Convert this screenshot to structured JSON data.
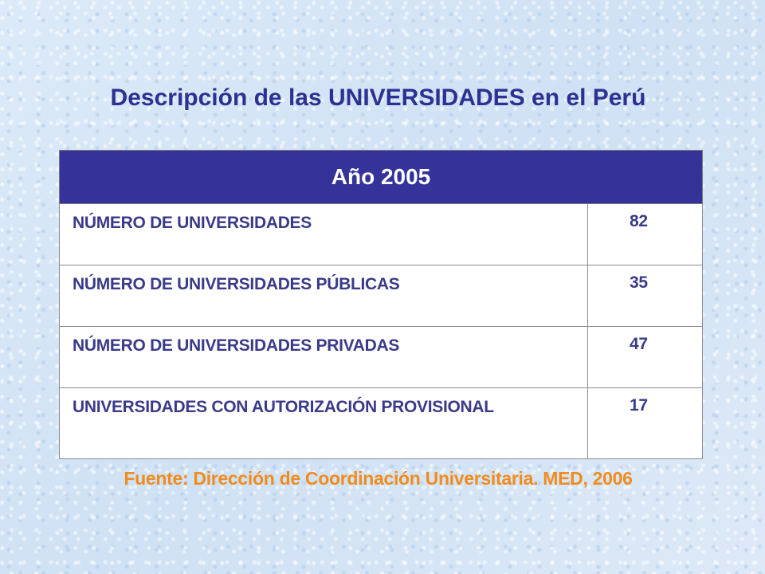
{
  "title": "Descripción de las UNIVERSIDADES en el Perú",
  "table": {
    "header": "Año 2005",
    "rows": [
      {
        "label": "NÚMERO DE UNIVERSIDADES",
        "value": "82"
      },
      {
        "label": "NÚMERO DE UNIVERSIDADES PÚBLICAS",
        "value": "35"
      },
      {
        "label": "NÚMERO DE UNIVERSIDADES PRIVADAS",
        "value": "47"
      },
      {
        "label": "UNIVERSIDADES CON AUTORIZACIÓN PROVISIONAL",
        "value": "17"
      }
    ]
  },
  "source": "Fuente: Dirección de Coordinación Universitaria. MED, 2006",
  "colors": {
    "title": "#2e3192",
    "header_bg": "#33339a",
    "cell_text": "#3a3a8a",
    "source_text": "#f08c1e",
    "background": "#d7e7f6"
  }
}
